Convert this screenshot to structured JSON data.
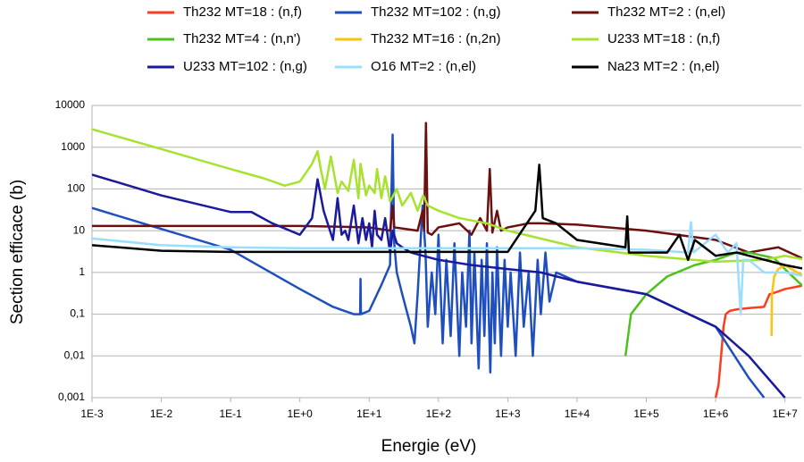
{
  "chart_data": {
    "type": "line",
    "xlabel": "Energie (eV)",
    "ylabel": "Section efficace (b)",
    "xscale": "log",
    "yscale": "log",
    "grid": true,
    "xlim": [
      0.001,
      20000000
    ],
    "ylim": [
      0.001,
      10000
    ],
    "xticks": [
      {
        "value": 0.001,
        "label": "1E-3"
      },
      {
        "value": 0.01,
        "label": "1E-2"
      },
      {
        "value": 0.1,
        "label": "1E-1"
      },
      {
        "value": 1,
        "label": "1E+0"
      },
      {
        "value": 10,
        "label": "1E+1"
      },
      {
        "value": 100,
        "label": "1E+2"
      },
      {
        "value": 1000,
        "label": "1E+3"
      },
      {
        "value": 10000,
        "label": "1E+4"
      },
      {
        "value": 100000,
        "label": "1E+5"
      },
      {
        "value": 1000000,
        "label": "1E+6"
      },
      {
        "value": 10000000,
        "label": "1E+7"
      }
    ],
    "yticks": [
      {
        "value": 0.001,
        "label": "0,001"
      },
      {
        "value": 0.01,
        "label": "0,01"
      },
      {
        "value": 0.1,
        "label": "0,1"
      },
      1,
      10,
      100,
      1000,
      10000
    ],
    "series": [
      {
        "name": "Th232 MT=18 : (n,f)",
        "color": "#ff3b1f",
        "x": [
          1000000,
          1100000,
          1200000,
          1300000,
          1400000,
          1600000,
          2000000,
          3000000,
          5000000,
          6000000,
          8000000,
          10000000,
          20000000
        ],
        "values": [
          0.001,
          0.002,
          0.01,
          0.05,
          0.1,
          0.12,
          0.13,
          0.14,
          0.15,
          0.3,
          0.35,
          0.4,
          0.5
        ]
      },
      {
        "name": "Th232 MT=102 : (n,g)",
        "color": "#1f4fbf",
        "x": [
          0.001,
          0.01,
          0.1,
          1,
          3,
          6,
          7.4,
          7.5,
          7.6,
          10,
          15,
          20,
          21.8,
          23,
          25,
          30,
          40,
          45,
          50,
          59,
          65,
          70,
          80,
          90,
          100,
          115,
          130,
          150,
          170,
          200,
          220,
          250,
          280,
          300,
          330,
          380,
          420,
          460,
          500,
          560,
          600,
          650,
          700,
          800,
          900,
          1000,
          1100,
          1300,
          1500,
          1700,
          2000,
          2300,
          2700,
          3000,
          3500,
          4000,
          5000,
          10000,
          100000,
          1000000,
          3000000,
          5000000
        ],
        "values": [
          35,
          11,
          3.5,
          0.4,
          0.15,
          0.1,
          0.1,
          0.7,
          0.1,
          0.12,
          0.5,
          1.5,
          2000,
          5,
          1,
          0.3,
          0.05,
          0.02,
          0.3,
          40,
          3,
          0.05,
          1,
          0.1,
          8,
          0.02,
          2,
          0.03,
          5,
          0.01,
          1,
          0.05,
          10,
          0.02,
          3,
          0.005,
          2,
          0.03,
          5,
          0.004,
          1,
          0.02,
          4,
          0.01,
          2,
          0.05,
          1,
          0.01,
          3,
          0.05,
          1,
          0.01,
          2,
          0.1,
          3,
          0.2,
          1,
          0.6,
          0.3,
          0.05,
          0.003,
          0.001
        ]
      },
      {
        "name": "Th232 MT=2 : (n,el)",
        "color": "#6b0f0f",
        "x": [
          0.001,
          1,
          10,
          20,
          21.8,
          23,
          50,
          59,
          62,
          66,
          70,
          80,
          100,
          200,
          300,
          400,
          500,
          550,
          600,
          700,
          800,
          1000,
          2000,
          3000,
          10000,
          100000,
          1000000,
          3000000,
          8000000,
          20000000
        ],
        "values": [
          13,
          13,
          12,
          10,
          40,
          12,
          10,
          30,
          10,
          3800,
          9,
          8,
          12,
          15,
          8,
          20,
          10,
          300,
          9,
          30,
          10,
          12,
          15,
          15,
          14,
          10,
          6,
          3,
          4,
          2
        ]
      },
      {
        "name": "Th232 MT=4 : (n,n')",
        "color": "#4cc21e",
        "x": [
          50000,
          60000,
          100000,
          200000,
          500000,
          1000000,
          2000000,
          3000000,
          7000000,
          10000000,
          20000000
        ],
        "values": [
          0.01,
          0.1,
          0.3,
          0.8,
          1.5,
          2,
          3,
          3,
          2.2,
          1.2,
          0.4
        ]
      },
      {
        "name": "Th232 MT=16 : (n,2n)",
        "color": "#ffc20e",
        "x": [
          6400000,
          6500000,
          7000000,
          8000000,
          10000000,
          15000000,
          20000000
        ],
        "values": [
          0.03,
          0.3,
          0.8,
          1.2,
          1.5,
          1,
          0.8
        ]
      },
      {
        "name": "U233 MT=18 : (n,f)",
        "color": "#a6e22e",
        "x": [
          0.001,
          0.01,
          0.1,
          0.3,
          0.6,
          1,
          1.5,
          1.8,
          2,
          2.3,
          2.8,
          3.5,
          4,
          5,
          6,
          7,
          7.5,
          9,
          10,
          12,
          13,
          15,
          17,
          20,
          25,
          30,
          40,
          50,
          60,
          70,
          100,
          200,
          500,
          1000,
          10000,
          100000,
          1000000,
          5000000,
          10000000,
          20000000
        ],
        "values": [
          2700,
          900,
          300,
          180,
          120,
          150,
          400,
          800,
          300,
          100,
          600,
          80,
          150,
          90,
          500,
          60,
          400,
          70,
          120,
          80,
          300,
          60,
          200,
          50,
          100,
          40,
          80,
          30,
          70,
          40,
          30,
          20,
          15,
          10,
          4,
          2.5,
          1.8,
          2,
          2.5,
          2
        ]
      },
      {
        "name": "U233 MT=102 : (n,g)",
        "color": "#1a1a9c",
        "x": [
          0.001,
          0.01,
          0.1,
          0.2,
          0.4,
          1,
          1.5,
          1.8,
          2.2,
          3,
          3.5,
          4,
          4.5,
          5,
          6,
          7,
          8,
          9,
          10,
          11,
          12,
          13,
          15,
          17,
          20,
          22,
          25,
          30,
          40,
          60,
          100,
          300,
          1000,
          3000,
          10000,
          100000,
          1000000,
          3000000,
          10000000
        ],
        "values": [
          220,
          70,
          28,
          28,
          15,
          8,
          20,
          170,
          30,
          6,
          60,
          8,
          10,
          6,
          40,
          5,
          20,
          6,
          15,
          4,
          30,
          8,
          6,
          20,
          3,
          10,
          5,
          4,
          3,
          2.5,
          2,
          1.5,
          1.2,
          1,
          0.6,
          0.3,
          0.05,
          0.01,
          0.001
        ]
      },
      {
        "name": "O16 MT=2 : (n,el)",
        "color": "#99ddff",
        "x": [
          0.001,
          0.01,
          0.1,
          1,
          10000,
          100000,
          400000,
          440000,
          480000,
          1000000,
          1500000,
          2000000,
          2300000,
          2500000,
          3000000,
          5000000,
          10000000,
          20000000
        ],
        "values": [
          6.5,
          4.5,
          4,
          3.8,
          3.8,
          3.5,
          3,
          16,
          3,
          8,
          3,
          5,
          0.1,
          2,
          2,
          1,
          1,
          0.8
        ]
      },
      {
        "name": "Na23 MT=2 : (n,el)",
        "color": "#000000",
        "x": [
          0.001,
          0.01,
          0.1,
          1000,
          2500,
          2850,
          3200,
          5000,
          10000,
          50000,
          53000,
          56000,
          200000,
          300000,
          400000,
          500000,
          1000000,
          2000000,
          10000000,
          20000000
        ],
        "values": [
          4.5,
          3.3,
          3.1,
          3.1,
          30,
          380,
          20,
          15,
          6,
          4,
          22,
          3,
          3,
          8,
          2,
          6,
          2.5,
          3,
          1.5,
          1.2
        ]
      }
    ]
  }
}
